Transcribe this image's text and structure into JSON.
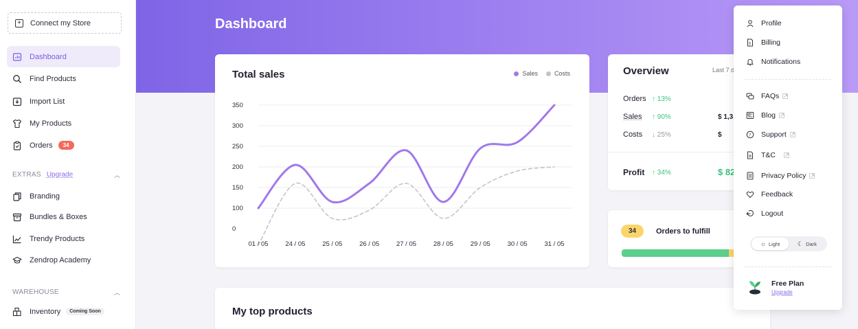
{
  "sidebar": {
    "connect_label": "Connect my Store",
    "items": [
      {
        "label": "Dashboard",
        "icon": "dashboard-icon"
      },
      {
        "label": "Find Products",
        "icon": "search-icon"
      },
      {
        "label": "Import List",
        "icon": "import-icon"
      },
      {
        "label": "My Products",
        "icon": "shirt-icon"
      },
      {
        "label": "Orders",
        "icon": "clipboard-icon",
        "badge": "34"
      }
    ],
    "extras": {
      "header": "EXTRAS",
      "upgrade": "Upgrade",
      "items": [
        {
          "label": "Branding",
          "icon": "copy-icon"
        },
        {
          "label": "Bundles & Boxes",
          "icon": "box-icon"
        },
        {
          "label": "Trendy Products",
          "icon": "trend-icon"
        },
        {
          "label": "Zendrop Academy",
          "icon": "graduation-cap-icon"
        }
      ]
    },
    "warehouse": {
      "header": "WAREHOUSE",
      "items": [
        {
          "label": "Inventory",
          "icon": "inventory-icon",
          "tag": "Coming Soon"
        }
      ]
    }
  },
  "header": {
    "title": "Dashboard"
  },
  "total_sales": {
    "title": "Total sales",
    "legend": [
      {
        "name": "Sales",
        "color": "#a078ea"
      },
      {
        "name": "Costs",
        "color": "#c4c4c8"
      }
    ]
  },
  "chart_data": {
    "type": "line",
    "x": [
      "01 / 05",
      "24 / 05",
      "25 / 05",
      "26 / 05",
      "27 / 05",
      "28 / 05",
      "29 / 05",
      "30 / 05",
      "31 / 05"
    ],
    "y_ticks": [
      "350",
      "300",
      "250",
      "200",
      "150",
      "100",
      "0"
    ],
    "series": [
      {
        "name": "Sales",
        "color": "#a078ea",
        "values": [
          100,
          205,
          115,
          160,
          240,
          115,
          245,
          260,
          350
        ]
      },
      {
        "name": "Costs",
        "color": "#c4c4c8",
        "values": [
          10,
          160,
          75,
          95,
          160,
          75,
          150,
          190,
          200
        ]
      }
    ]
  },
  "overview": {
    "title": "Overview",
    "period": "Last 7 d",
    "rows": [
      {
        "label": "Orders",
        "change": "↑ 13%",
        "dir": "up",
        "value": ""
      },
      {
        "label": "Sales",
        "change": "↑ 90%",
        "dir": "up",
        "value": "$ 1,3"
      },
      {
        "label": "Costs",
        "change": "↓ 25%",
        "dir": "down",
        "value": "$"
      }
    ],
    "profit": {
      "label": "Profit",
      "change": "↑ 34%",
      "value": "$ 82"
    }
  },
  "fulfill": {
    "count": "34",
    "label": "Orders to fulfill",
    "progress_green": 0.78
  },
  "top_products": {
    "title": "My top products"
  },
  "dropdown": {
    "group1": [
      {
        "label": "Profile",
        "icon": "user-icon"
      },
      {
        "label": "Billing",
        "icon": "document-icon"
      },
      {
        "label": "Notifications",
        "icon": "bell-icon"
      }
    ],
    "group2": [
      {
        "label": "FAQs",
        "icon": "chat-icon",
        "external": true
      },
      {
        "label": "Blog",
        "icon": "newspaper-icon",
        "external": true
      },
      {
        "label": "Support",
        "icon": "help-icon",
        "external": true
      },
      {
        "label": "T&C",
        "icon": "file-icon",
        "external": true
      },
      {
        "label": "Privacy Policy",
        "icon": "file-lines-icon",
        "external": true
      },
      {
        "label": "Feedback",
        "icon": "heart-icon",
        "external": false
      },
      {
        "label": "Logout",
        "icon": "logout-icon",
        "external": false
      }
    ],
    "theme": {
      "light": "Light",
      "dark": "Dark",
      "selected": "Light"
    },
    "plan": {
      "name": "Free Plan",
      "upgrade": "Upgrade"
    }
  }
}
